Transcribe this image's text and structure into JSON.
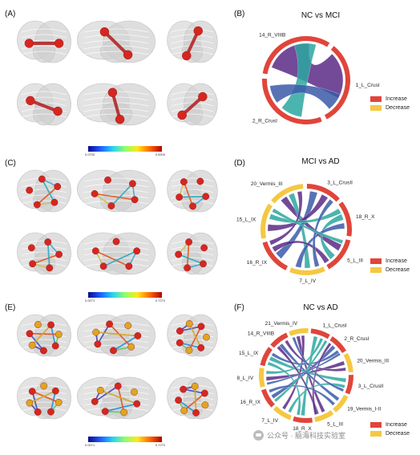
{
  "panels": {
    "A": "(A)",
    "B": "(B)",
    "C": "(C)",
    "D": "(D)",
    "E": "(E)",
    "F": "(F)"
  },
  "colorbars": {
    "A": {
      "min": "0.0700",
      "max": "0.0000"
    },
    "C": {
      "min": "0.0071",
      "max": "0.7270"
    },
    "E": {
      "min": "0.0071",
      "max": "0.7270"
    }
  },
  "chords": {
    "B": {
      "title": "NC vs MCI",
      "labels": [
        "14_R_VIIIB",
        "1_L_CrusI",
        "2_R_CrusI"
      ]
    },
    "D": {
      "title": "MCI vs AD",
      "labels": [
        "20_Vermis_III",
        "3_L_CrusII",
        "18_R_X",
        "5_L_III",
        "7_L_IV",
        "16_R_IX",
        "15_L_IX"
      ]
    },
    "F": {
      "title": "NC vs AD",
      "labels": [
        "21_Vermis_IV",
        "1_L_CrusI",
        "2_R_CrusI",
        "20_Vermis_III",
        "3_L_CrusII",
        "19_Vermis_I-II",
        "5_L_III",
        "18_R_X",
        "7_L_IV",
        "16_R_IX",
        "8_L_IV",
        "15_L_IX",
        "14_R_VIIIB"
      ]
    }
  },
  "legend": {
    "increase": "Increase",
    "decrease": "Decrease",
    "increase_color": "#e0453a",
    "decrease_color": "#f5c842"
  },
  "watermark": "公众号 · 脑海科技实验室",
  "colors": {
    "chord_purple": "#5a2a86",
    "chord_teal": "#2ba7a0",
    "chord_blue": "#3b5aa8"
  }
}
